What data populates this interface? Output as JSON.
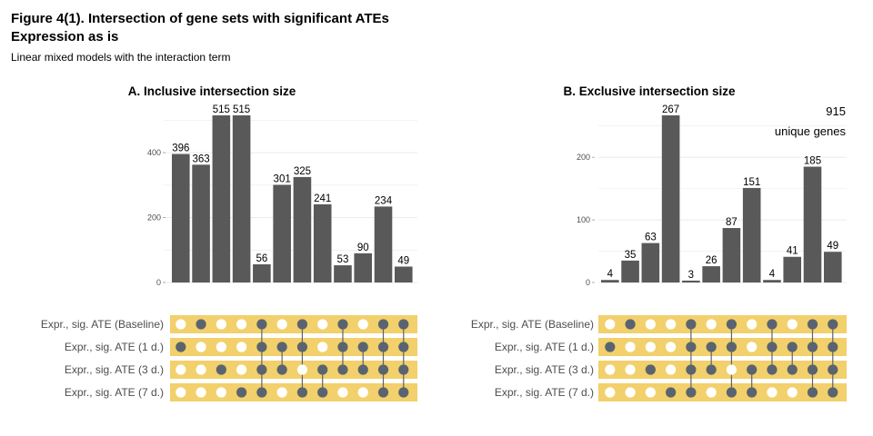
{
  "figure": {
    "title_line1": "Figure 4(1). Intersection of gene sets with significant ATEs",
    "title_line2": "Expression as is",
    "subtitle": "Linear mixed models with the interaction term"
  },
  "colors": {
    "bar": "#595959",
    "matrix_band": "#f2d06b",
    "dot_filled": "#5a6470",
    "dot_empty": "#ffffff",
    "grid": "#ebebeb"
  },
  "sets": [
    "Expr., sig. ATE (Baseline)",
    "Expr., sig. ATE (1 d.)",
    "Expr., sig. ATE (3 d.)",
    "Expr., sig. ATE (7 d.)"
  ],
  "chart_data": [
    {
      "type": "bar",
      "title": "A. Inclusive intersection size",
      "ylim": [
        0,
        515
      ],
      "yticks": [
        0,
        200,
        400
      ],
      "grid": true,
      "values": [
        396,
        363,
        515,
        515,
        56,
        301,
        325,
        241,
        53,
        90,
        234,
        49
      ],
      "value_labels": [
        "396",
        "363",
        "515",
        "515",
        "56",
        "301",
        "325",
        "241",
        "53",
        "90",
        "234",
        "49"
      ],
      "membership": [
        [
          2
        ],
        [
          1
        ],
        [
          3
        ],
        [
          4
        ],
        [
          1,
          2,
          3,
          4
        ],
        [
          2,
          3
        ],
        [
          1,
          2,
          4
        ],
        [
          3,
          4
        ],
        [
          1,
          2,
          3
        ],
        [
          2,
          3
        ],
        [
          1,
          2,
          3,
          4
        ],
        [
          1,
          2,
          3,
          4
        ]
      ]
    },
    {
      "type": "bar",
      "title": "B. Exclusive intersection size",
      "ylim": [
        0,
        267
      ],
      "yticks": [
        0,
        100,
        200
      ],
      "grid": true,
      "values": [
        4,
        35,
        63,
        267,
        3,
        26,
        87,
        151,
        4,
        41,
        185,
        49
      ],
      "value_labels": [
        "4",
        "35",
        "63",
        "267",
        "3",
        "26",
        "87",
        "151",
        "4",
        "41",
        "185",
        "49"
      ],
      "membership": [
        [
          2
        ],
        [
          1
        ],
        [
          3
        ],
        [
          4
        ],
        [
          1,
          2,
          3,
          4
        ],
        [
          2,
          3
        ],
        [
          1,
          2,
          4
        ],
        [
          3,
          4
        ],
        [
          1,
          2,
          3
        ],
        [
          2,
          3
        ],
        [
          1,
          2,
          3,
          4
        ],
        [
          1,
          2,
          3,
          4
        ]
      ],
      "annotation_count": "915",
      "annotation_text": "unique genes"
    }
  ]
}
